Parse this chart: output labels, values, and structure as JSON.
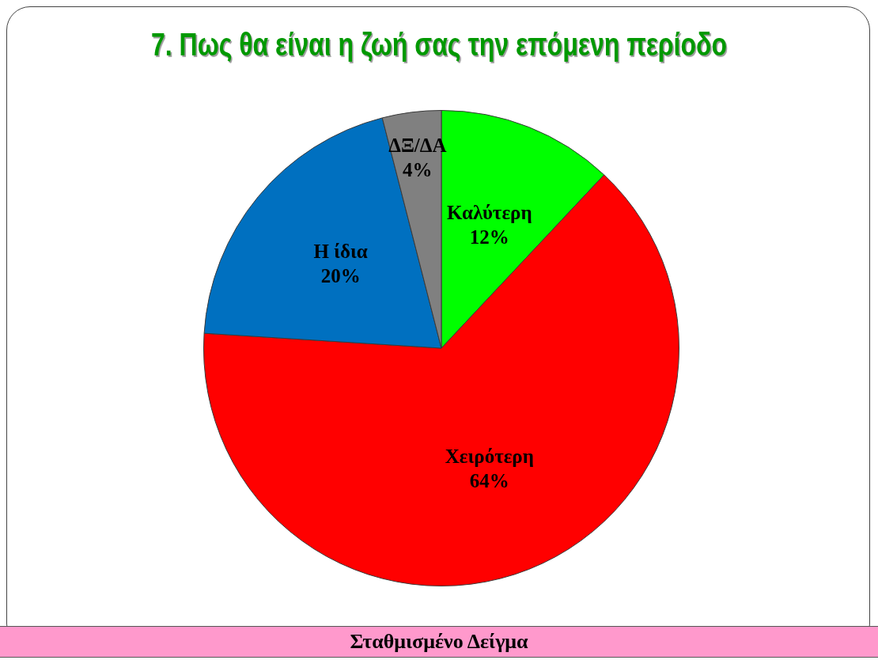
{
  "chart_data": {
    "type": "pie",
    "title": "7. Πως θα είναι η ζωή σας την επόμενη περίοδο",
    "categories": [
      "Καλύτερη",
      "Χειρότερη",
      "Η ίδια",
      "ΔΞ/ΔΑ"
    ],
    "values": [
      12,
      64,
      20,
      4
    ],
    "colors": [
      "#00ff00",
      "#ff0000",
      "#0070c0",
      "#808080"
    ],
    "value_labels": [
      "12%",
      "64%",
      "20%",
      "4%"
    ],
    "annotations": [
      "Σταθμισμένο Δείγμα"
    ]
  }
}
